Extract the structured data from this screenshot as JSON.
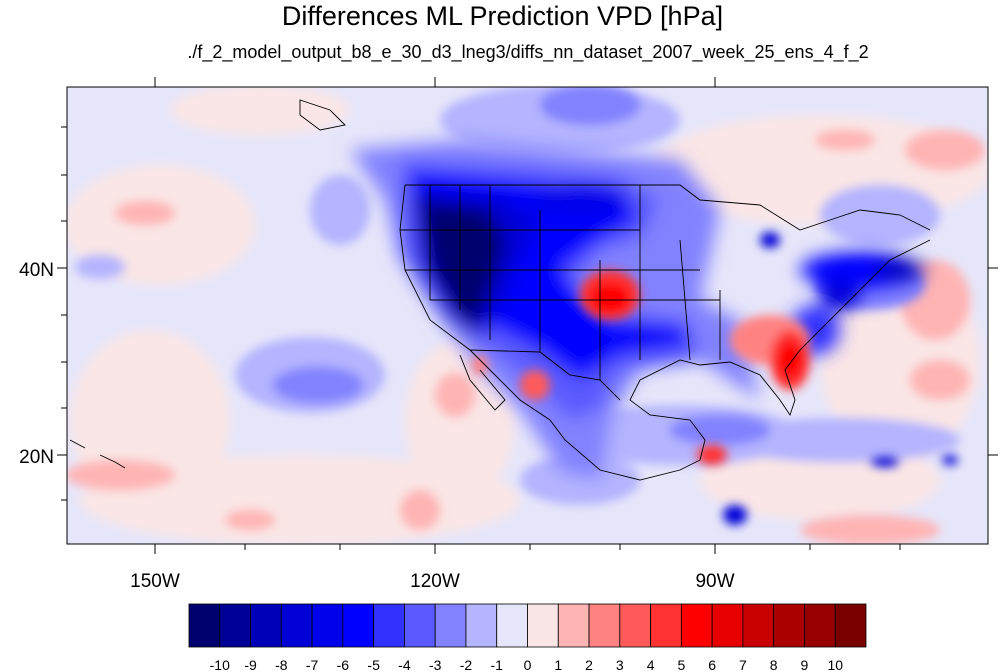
{
  "title": "Differences ML Prediction VPD [hPa]",
  "subtitle": "./f_2_model_output_b8_e_30_d3_lneg3/diffs_nn_dataset_2007_week_25_ens_4_f_2",
  "map": {
    "lat_labels": [
      "40N",
      "20N"
    ],
    "lon_labels": [
      "150W",
      "120W",
      "90W"
    ],
    "ocean_base_color": "#e6e6fa"
  },
  "colorbar": {
    "labels": [
      "-10",
      "-9",
      "-8",
      "-7",
      "-6",
      "-5",
      "-4",
      "-3",
      "-2",
      "-1",
      "0",
      "1",
      "2",
      "3",
      "4",
      "5",
      "6",
      "7",
      "8",
      "9",
      "10"
    ],
    "colors": [
      "#00006e",
      "#000096",
      "#0000b9",
      "#0000d7",
      "#0000eb",
      "#0000ff",
      "#3232ff",
      "#5a5aff",
      "#8282ff",
      "#b4b4ff",
      "#e6e6fa",
      "#fae6e6",
      "#ffb4b4",
      "#ff8282",
      "#ff5a5a",
      "#ff3232",
      "#ff0000",
      "#e60000",
      "#c80000",
      "#aa0000",
      "#960000",
      "#780000"
    ]
  }
}
